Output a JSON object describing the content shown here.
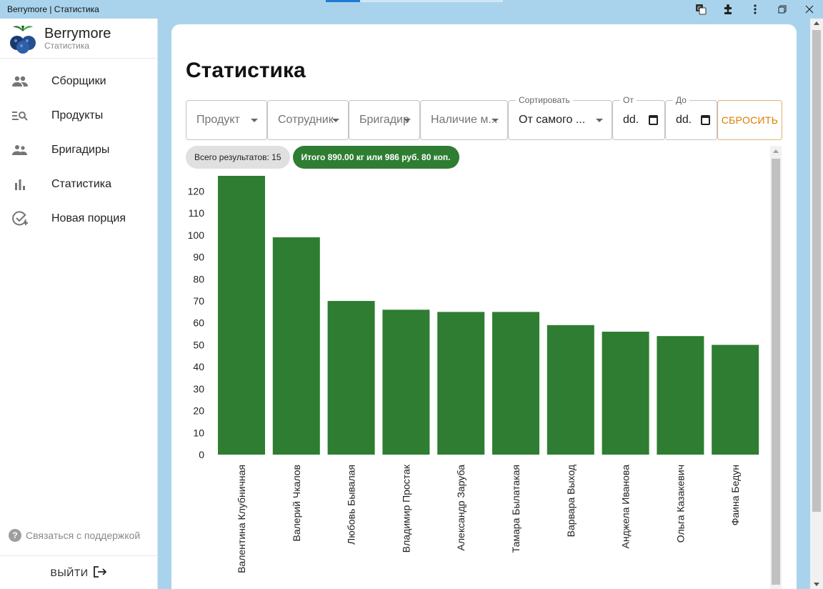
{
  "window": {
    "title": "Berrymore | Статистика"
  },
  "brand": {
    "name": "Berrymore",
    "subtitle": "Статистика"
  },
  "nav": [
    {
      "label": "Сборщики",
      "icon": "people-icon"
    },
    {
      "label": "Продукты",
      "icon": "list-search-icon"
    },
    {
      "label": "Бригадиры",
      "icon": "supervisors-icon"
    },
    {
      "label": "Статистика",
      "icon": "bar-chart-icon"
    },
    {
      "label": "Новая порция",
      "icon": "add-task-icon"
    }
  ],
  "support": {
    "label": "Связаться с поддержкой"
  },
  "logout": {
    "label": "ВЫЙТИ"
  },
  "page": {
    "title": "Статистика"
  },
  "filters": {
    "product": "Продукт",
    "employee": "Сотрудник",
    "brigadier": "Бригадир",
    "availability": "Наличие м...",
    "sort_label": "Сортировать",
    "sort_value": "От самого ...",
    "from_label": "От",
    "from_value": "dd.",
    "to_label": "До",
    "to_value": "dd.",
    "reset": "СБРОСИТЬ"
  },
  "summary": {
    "total_results": "Всего результатов: 15",
    "total": "Итого 890.00 кг или 986 руб. 80 коп."
  },
  "colors": {
    "bar": "#2e7d32",
    "accent": "#e07b00"
  },
  "chart_data": {
    "type": "bar",
    "categories": [
      "Валентина Клубничная",
      "Валерий Чкалов",
      "Любовь Бывалая",
      "Владимир Простак",
      "Александр Заруба",
      "Тамара Былатакая",
      "Варвара Выход",
      "Анджела Иванова",
      "Ольга Казакевич",
      "Фаина Бедун"
    ],
    "values": [
      127,
      99,
      70,
      66,
      65,
      65,
      59,
      56,
      54,
      50
    ],
    "yticks": [
      0,
      10,
      20,
      30,
      40,
      50,
      60,
      70,
      80,
      90,
      100,
      110,
      120
    ],
    "ylim": [
      0,
      127
    ],
    "title": "",
    "xlabel": "",
    "ylabel": ""
  }
}
